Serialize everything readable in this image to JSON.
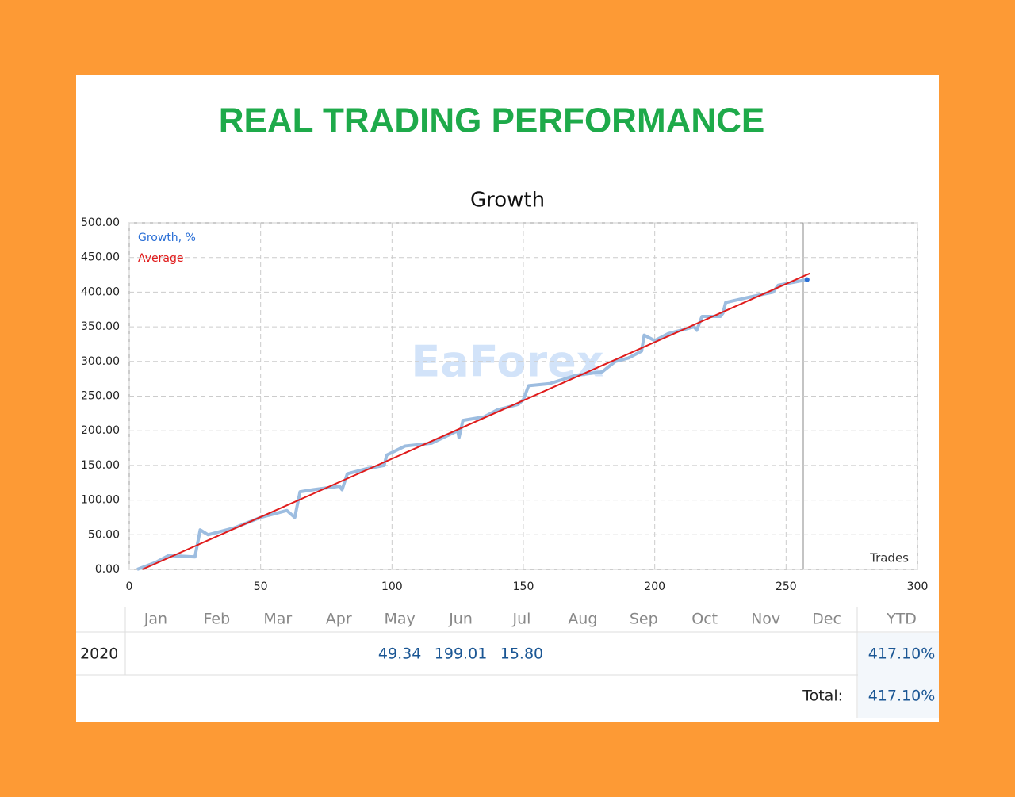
{
  "heading": "REAL TRADING PERFORMANCE",
  "watermark": "EaForex",
  "chart_data": {
    "type": "line",
    "title": "Growth",
    "xlim": [
      0,
      300
    ],
    "xticks": [
      0,
      50,
      100,
      150,
      200,
      250,
      300
    ],
    "ylim": [
      0,
      500
    ],
    "yticks": [
      {
        "value": 0,
        "label": "0.00"
      },
      {
        "value": 50,
        "label": "50.00"
      },
      {
        "value": 100,
        "label": "100.00"
      },
      {
        "value": 150,
        "label": "150.00"
      },
      {
        "value": 200,
        "label": "200.00"
      },
      {
        "value": 250,
        "label": "250.00"
      },
      {
        "value": 300,
        "label": "300.00"
      },
      {
        "value": 350,
        "label": "350.00"
      },
      {
        "value": 400,
        "label": "400.00"
      },
      {
        "value": 450,
        "label": "450.00"
      },
      {
        "value": 500,
        "label": "500.00"
      }
    ],
    "grid": true,
    "legend": "upper left",
    "x_note": "Trades",
    "series": [
      {
        "name": "Growth, %",
        "color": "#9dbde0",
        "legend_color": "#2a6fd6",
        "x": [
          3,
          10,
          15,
          25,
          27,
          30,
          40,
          50,
          60,
          63,
          65,
          70,
          80,
          81,
          83,
          90,
          97,
          98,
          105,
          115,
          125,
          125.5,
          127,
          135,
          140,
          148,
          150,
          152,
          160,
          170,
          180,
          185,
          190,
          195,
          196,
          200,
          205,
          215,
          216,
          218,
          225,
          226,
          227,
          235,
          245,
          247,
          258
        ],
        "values": [
          0,
          10,
          20,
          18,
          57,
          50,
          60,
          75,
          85,
          75,
          112,
          115,
          120,
          115,
          138,
          145,
          150,
          165,
          178,
          182,
          200,
          190,
          215,
          220,
          230,
          238,
          245,
          265,
          268,
          280,
          285,
          300,
          305,
          315,
          338,
          330,
          340,
          350,
          345,
          365,
          365,
          370,
          385,
          392,
          400,
          410,
          418
        ]
      },
      {
        "name": "Average",
        "color": "#e01b1b",
        "x": [
          5,
          259
        ],
        "values": [
          0,
          427
        ]
      }
    ]
  },
  "table": {
    "months": [
      "Jan",
      "Feb",
      "Mar",
      "Apr",
      "May",
      "Jun",
      "Jul",
      "Aug",
      "Sep",
      "Oct",
      "Nov",
      "Dec"
    ],
    "ytd_header": "YTD",
    "rows": [
      {
        "year": "2020",
        "cells": [
          null,
          null,
          null,
          null,
          "49.34",
          "199.01",
          "15.80",
          null,
          null,
          null,
          null,
          null
        ],
        "ytd": "417.10%"
      }
    ],
    "total_label": "Total:",
    "total": "417.10%"
  }
}
